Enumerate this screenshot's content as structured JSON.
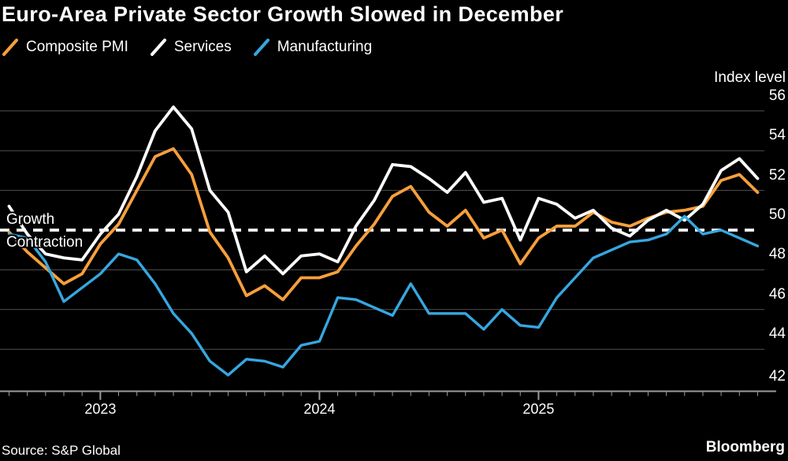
{
  "header": {
    "title": "Euro-Area Private Sector Growth Slowed in December"
  },
  "legend": [
    {
      "label": "Composite PMI",
      "color": "#F89F3C"
    },
    {
      "label": "Services",
      "color": "#FFFFFF"
    },
    {
      "label": "Manufacturing",
      "color": "#36A7E0"
    }
  ],
  "axis": {
    "y_title": "Index level",
    "y_ticks": [
      56,
      54,
      52,
      50,
      48,
      46,
      44,
      42
    ],
    "x_ticks": [
      "2023",
      "2024",
      "2025"
    ]
  },
  "annotations": {
    "above_line": "Growth",
    "below_line": "Contraction"
  },
  "footer": {
    "source": "Source: S&P Global",
    "brand": "Bloomberg"
  },
  "colors": {
    "background": "#000000",
    "grid": "#515151",
    "axis": "#9B9B9B",
    "baseline_dash": "#FFFFFF",
    "text": "#FFFFFF"
  },
  "chart_data": {
    "type": "line",
    "title": "Euro-Area Private Sector Growth Slowed in December",
    "ylabel": "Index level",
    "ylim": [
      41.9,
      56.9
    ],
    "y_tick_interval": 2,
    "grid": "horizontal",
    "legend_position": "top-left",
    "baseline_value": 50,
    "x": [
      "Jul 2022",
      "Aug 2022",
      "Sep 2022",
      "Oct 2022",
      "Nov 2022",
      "Dec 2022",
      "Jan 2023",
      "Feb 2023",
      "Mar 2023",
      "Apr 2023",
      "May 2023",
      "Jun 2023",
      "Jul 2023",
      "Aug 2023",
      "Sep 2023",
      "Oct 2023",
      "Nov 2023",
      "Dec 2023",
      "Jan 2024",
      "Feb 2024",
      "Mar 2024",
      "Apr 2024",
      "May 2024",
      "Jun 2024",
      "Jul 2024",
      "Aug 2024",
      "Sep 2024",
      "Oct 2024",
      "Nov 2024",
      "Dec 2024",
      "Jan 2025",
      "Feb 2025",
      "Mar 2025",
      "Apr 2025",
      "May 2025",
      "Jun 2025",
      "Jul 2025",
      "Aug 2025",
      "Sep 2025",
      "Oct 2025",
      "Nov 2025",
      "Dec 2025"
    ],
    "series": [
      {
        "name": "Composite PMI",
        "color": "#F89F3C",
        "values": [
          49.9,
          48.9,
          48.1,
          47.3,
          47.8,
          49.3,
          50.3,
          52.0,
          53.7,
          54.1,
          52.8,
          49.9,
          48.6,
          46.7,
          47.2,
          46.5,
          47.6,
          47.6,
          47.9,
          49.2,
          50.3,
          51.7,
          52.2,
          50.9,
          50.2,
          51.0,
          49.6,
          50.0,
          48.3,
          49.6,
          50.2,
          50.2,
          50.9,
          50.4,
          50.2,
          50.6,
          50.9,
          51.0,
          51.2,
          52.5,
          52.8,
          51.9
        ]
      },
      {
        "name": "Services",
        "color": "#FFFFFF",
        "values": [
          51.2,
          49.8,
          48.8,
          48.6,
          48.5,
          49.8,
          50.8,
          52.7,
          55.0,
          56.2,
          55.1,
          52.0,
          50.9,
          47.9,
          48.7,
          47.8,
          48.7,
          48.8,
          48.4,
          50.2,
          51.5,
          53.3,
          53.2,
          52.6,
          51.9,
          52.9,
          51.4,
          51.6,
          49.5,
          51.6,
          51.3,
          50.6,
          51.0,
          50.1,
          49.7,
          50.5,
          51.0,
          50.5,
          51.3,
          53.0,
          53.6,
          52.6
        ]
      },
      {
        "name": "Manufacturing",
        "color": "#36A7E0",
        "values": [
          49.8,
          49.6,
          48.4,
          46.4,
          47.1,
          47.8,
          48.8,
          48.5,
          47.3,
          45.8,
          44.8,
          43.4,
          42.7,
          43.5,
          43.4,
          43.1,
          44.2,
          44.4,
          46.6,
          46.5,
          46.1,
          45.7,
          47.3,
          45.8,
          45.8,
          45.8,
          45.0,
          46.0,
          45.2,
          45.1,
          46.6,
          47.6,
          48.6,
          49.0,
          49.4,
          49.5,
          49.8,
          50.7,
          49.8,
          50.0,
          49.6,
          49.2
        ]
      }
    ]
  }
}
